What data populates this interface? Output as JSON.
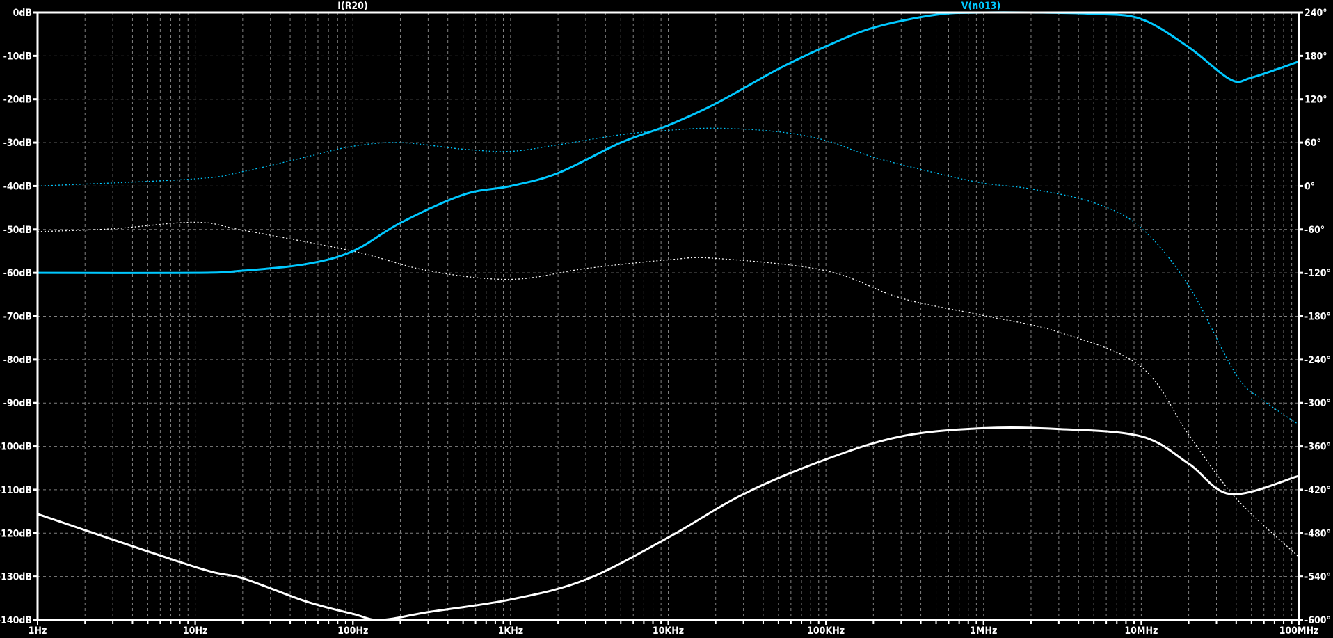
{
  "chart_data": {
    "type": "line",
    "title": "",
    "x_scale": "log",
    "xlim": [
      1,
      100000000
    ],
    "x_ticks": [
      {
        "value": 1,
        "label": "1Hz"
      },
      {
        "value": 10,
        "label": "10Hz"
      },
      {
        "value": 100,
        "label": "100Hz"
      },
      {
        "value": 1000,
        "label": "1KHz"
      },
      {
        "value": 10000,
        "label": "10KHz"
      },
      {
        "value": 100000,
        "label": "100KHz"
      },
      {
        "value": 1000000,
        "label": "1MHz"
      },
      {
        "value": 10000000,
        "label": "10MHz"
      },
      {
        "value": 100000000,
        "label": "100MHz"
      }
    ],
    "y_left": {
      "unit": "dB",
      "ylim": [
        -140,
        0
      ],
      "ticks": [
        "0dB",
        "-10dB",
        "-20dB",
        "-30dB",
        "-40dB",
        "-50dB",
        "-60dB",
        "-70dB",
        "-80dB",
        "-90dB",
        "-100dB",
        "-110dB",
        "-120dB",
        "-130dB",
        "-140dB"
      ]
    },
    "y_right": {
      "unit": "°",
      "ylim": [
        -600,
        240
      ],
      "ticks": [
        "240°",
        "180°",
        "120°",
        "60°",
        "0°",
        "-60°",
        "-120°",
        "-180°",
        "-240°",
        "-300°",
        "-360°",
        "-420°",
        "-480°",
        "-540°",
        "-600°"
      ]
    },
    "grid": true,
    "background": "#000000",
    "legend_placement": "top",
    "series": [
      {
        "name": "I(R20)",
        "color": "#ffffff",
        "magnitude_db": {
          "x": [
            1,
            10,
            20,
            50,
            100,
            150,
            300,
            1000,
            3000,
            10000,
            30000,
            100000,
            300000,
            1000000,
            3000000,
            10000000,
            20000000,
            37000000,
            100000000
          ],
          "y": [
            -115.6,
            -127.8,
            -130.4,
            -135.7,
            -138.6,
            -140,
            -138.2,
            -135.3,
            -130.7,
            -121,
            -111,
            -103,
            -97.7,
            -95.8,
            -96,
            -97.7,
            -104,
            -111,
            -106.8
          ]
        },
        "phase_deg": {
          "x": [
            1,
            3,
            10,
            20,
            100,
            300,
            1000,
            3000,
            10000,
            20000,
            100000,
            300000,
            1000000,
            3000000,
            10000000,
            20000000,
            40000000,
            100000000
          ],
          "y": [
            -63,
            -59,
            -50,
            -61,
            -90,
            -117,
            -129,
            -114,
            -102,
            -100,
            -117,
            -155,
            -179,
            -202,
            -250,
            -344,
            -432,
            -513
          ]
        }
      },
      {
        "name": "V(n013)",
        "color": "#00c8ff",
        "magnitude_db": {
          "x": [
            1,
            10,
            20,
            50,
            100,
            200,
            500,
            1000,
            2000,
            5000,
            10000,
            20000,
            50000,
            100000,
            200000,
            500000,
            1000000,
            2000000,
            5000000,
            10000000,
            20000000,
            37000000,
            50000000,
            100000000
          ],
          "y": [
            -60,
            -60,
            -59.5,
            -58,
            -55,
            -48.5,
            -42,
            -40,
            -37,
            -30,
            -26,
            -21,
            -13,
            -7.8,
            -3.5,
            -0.5,
            0,
            0,
            -0.3,
            -1.5,
            -8,
            -15.5,
            -15,
            -11.3
          ]
        },
        "phase_deg": {
          "x": [
            1,
            10,
            20,
            50,
            100,
            200,
            500,
            1000,
            2000,
            5000,
            10000,
            20000,
            50000,
            100000,
            200000,
            500000,
            1000000,
            2000000,
            5000000,
            10000000,
            20000000,
            40000000,
            60000000,
            100000000
          ],
          "y": [
            0,
            10,
            20,
            40,
            55,
            60,
            51,
            48,
            57,
            71,
            77,
            80,
            75,
            63,
            40,
            18,
            4,
            -4,
            -23,
            -58,
            -138,
            -261,
            -297,
            -330
          ]
        }
      }
    ]
  }
}
